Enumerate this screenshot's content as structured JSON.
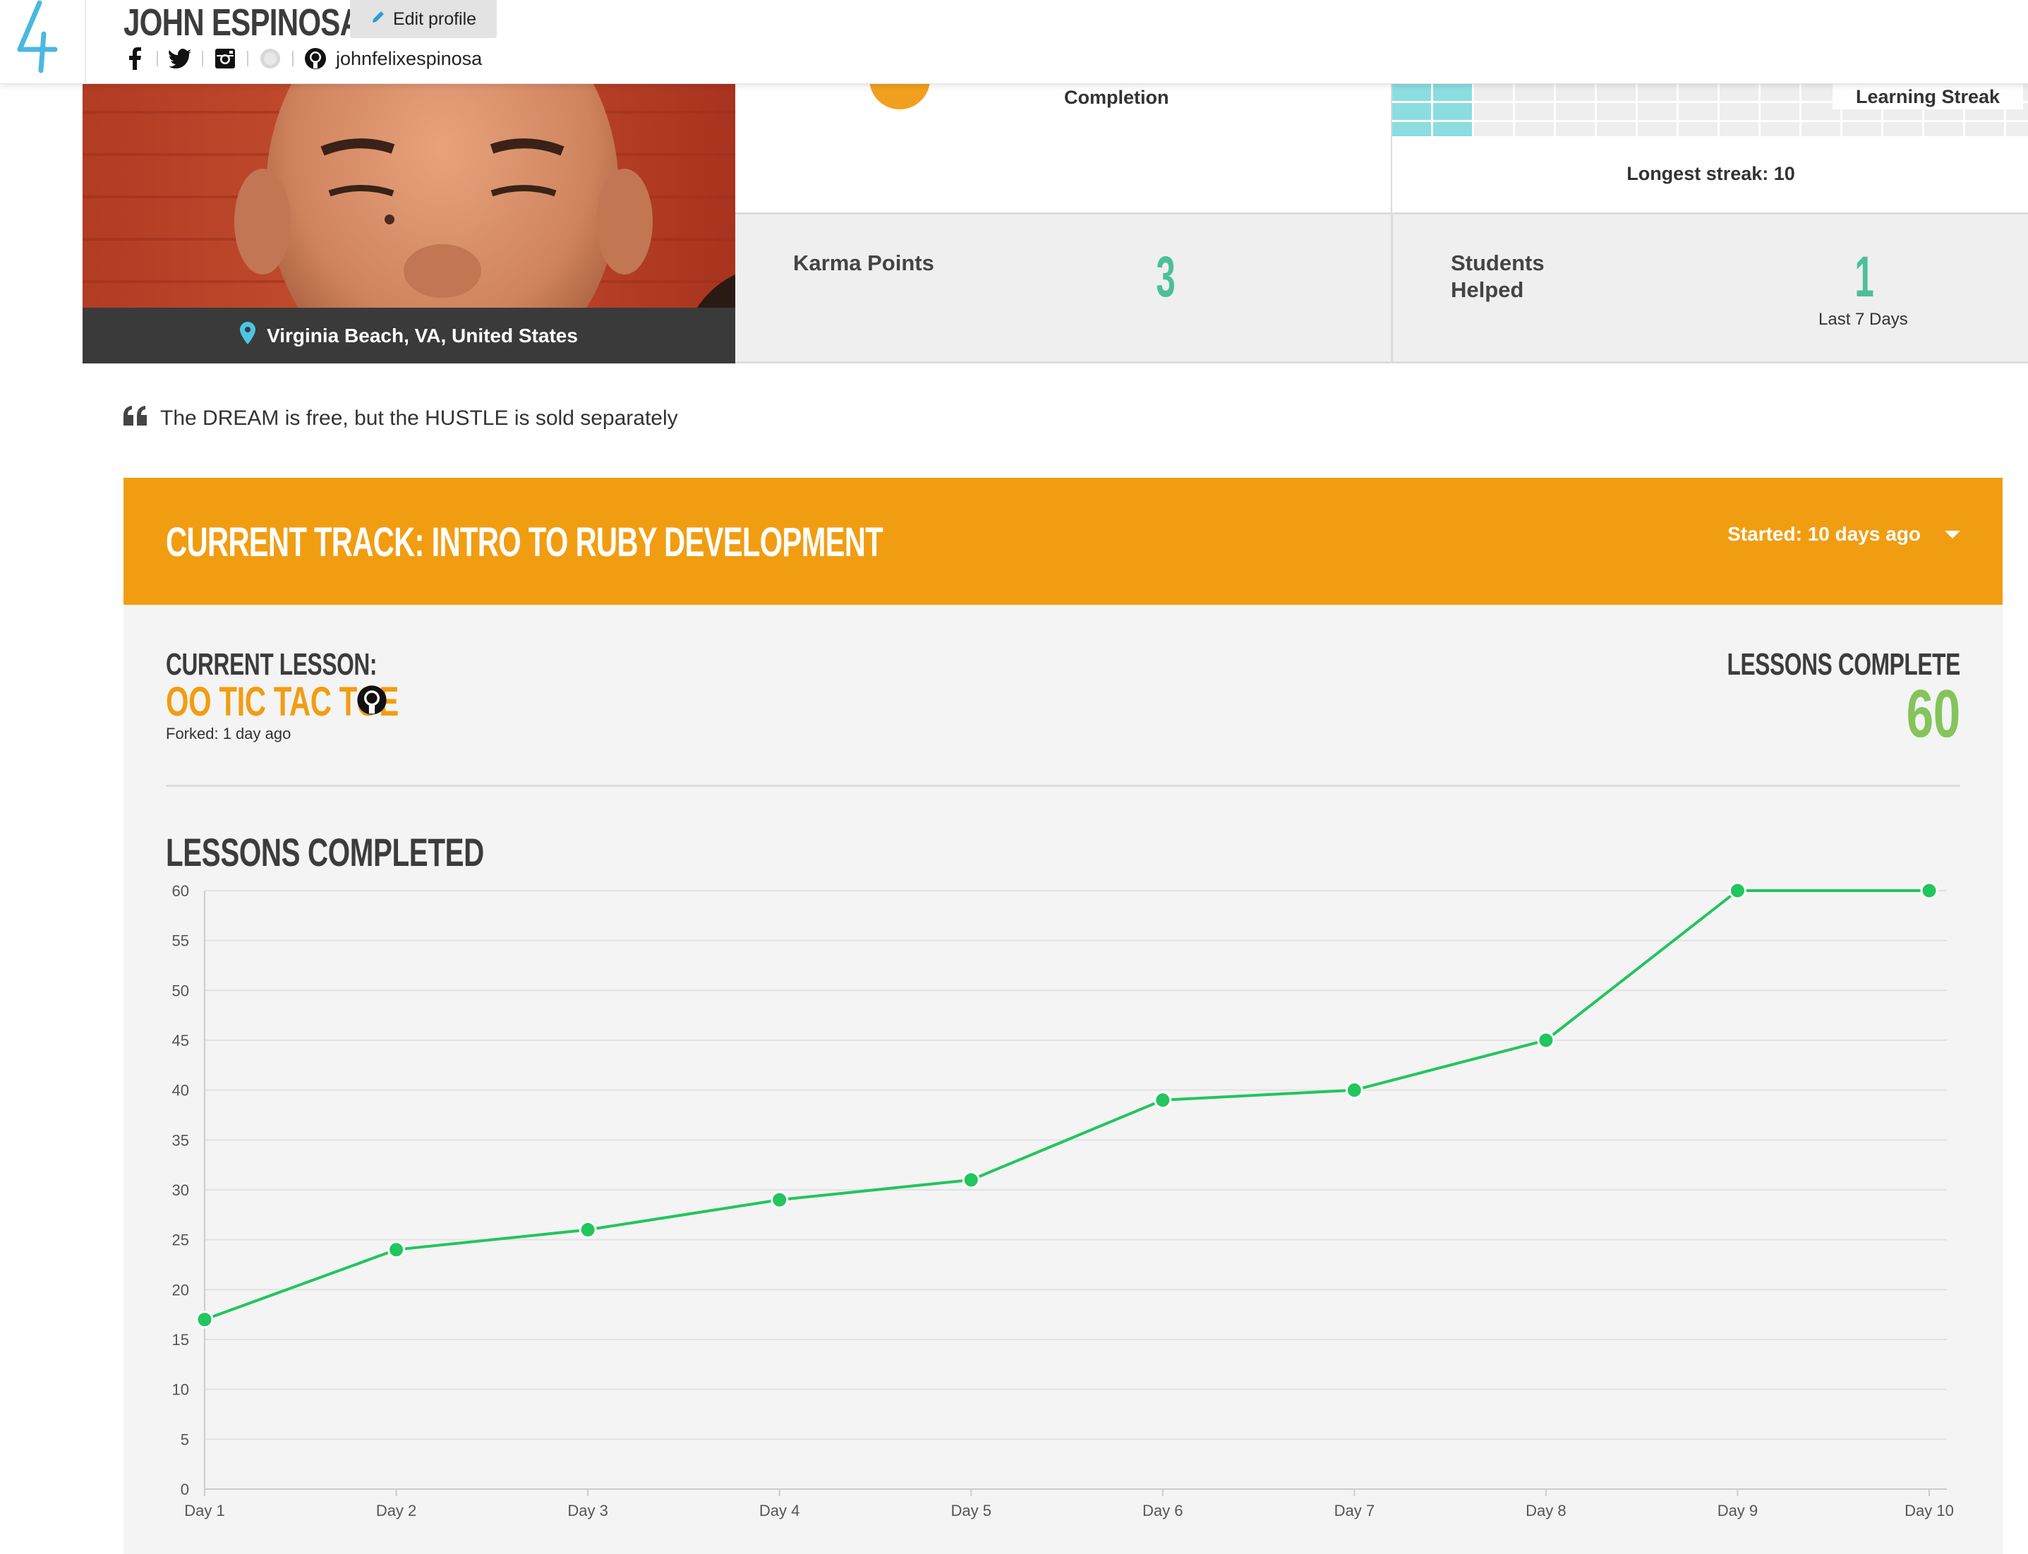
{
  "header": {
    "user_name": "JOHN ESPINOSA",
    "edit_label": "Edit profile",
    "github_username": "johnfelixespinosa",
    "social_icons": [
      "facebook-icon",
      "twitter-icon",
      "instagram-icon",
      "globe-icon",
      "github-icon"
    ]
  },
  "profile": {
    "location": "Virginia Beach, VA, United States",
    "quote": "The DREAM is free, but the HUSTLE is sold separately"
  },
  "stats": {
    "completion_label": "Completion",
    "streak_label": "Learning Streak",
    "longest_streak": "Longest streak: 10",
    "karma_label": "Karma Points",
    "karma_value": "3",
    "helped_label": "Students Helped",
    "helped_value": "1",
    "helped_note": "Last 7 Days"
  },
  "track": {
    "title": "CURRENT TRACK: INTRO TO RUBY DEVELOPMENT",
    "started": "Started: 10 days ago",
    "current_lesson_label": "CURRENT LESSON:",
    "current_lesson_name": "OO TIC TAC TOE",
    "forked": "Forked: 1 day ago",
    "lessons_complete_label": "LESSONS COMPLETE",
    "lessons_complete_value": "60",
    "chart_title": "LESSONS COMPLETED"
  },
  "colors": {
    "accent_orange": "#f19d12",
    "teal": "#4cbf9a",
    "green": "#84c45a",
    "line_green": "#22c55e",
    "streak_cyan": "#8bdde0"
  },
  "chart_data": {
    "type": "line",
    "title": "LESSONS COMPLETED",
    "categories": [
      "Day 1",
      "Day 2",
      "Day 3",
      "Day 4",
      "Day 5",
      "Day 6",
      "Day 7",
      "Day 8",
      "Day 9",
      "Day 10"
    ],
    "series": [
      {
        "values": [
          17,
          24,
          26,
          29,
          31,
          39,
          40,
          45,
          60,
          60
        ]
      }
    ],
    "ylim": [
      0,
      60
    ],
    "yticks": [
      0,
      5,
      10,
      15,
      20,
      25,
      30,
      35,
      40,
      45,
      50,
      55,
      60
    ],
    "grid": true
  }
}
